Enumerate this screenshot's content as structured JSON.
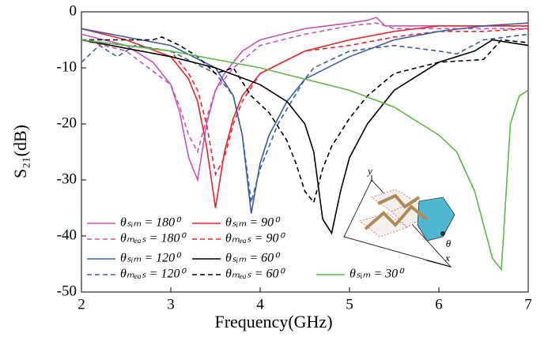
{
  "chart_data": {
    "type": "line",
    "xlabel": "Frequency(GHz)",
    "ylabel": "S₂₁(dB)",
    "xlim": [
      2,
      7
    ],
    "xticks": [
      2,
      3,
      4,
      5,
      6,
      7
    ],
    "ylim": [
      -50,
      0
    ],
    "yticks": [
      0,
      -10,
      -20,
      -30,
      -40,
      -50
    ],
    "grid": false,
    "series": [
      {
        "name": "θₛᵢₘ = 180⁰",
        "color": "#c653b8",
        "dashed": false,
        "x": [
          2,
          2.5,
          2.8,
          3.0,
          3.1,
          3.2,
          3.3,
          3.4,
          3.5,
          3.6,
          3.8,
          4.0,
          4.5,
          5.0,
          5.2,
          5.3,
          5.4,
          5.6,
          6.0,
          7.0
        ],
        "values": [
          -4,
          -6,
          -9,
          -13,
          -18,
          -26,
          -30,
          -20,
          -14,
          -11,
          -7,
          -5,
          -3,
          -2,
          -1.5,
          -1,
          -2.5,
          -2.5,
          -2.5,
          -2.5
        ]
      },
      {
        "name": "θₘₑₐₛ = 180⁰",
        "color": "#c653b8",
        "dashed": true,
        "x": [
          2,
          2.5,
          3.0,
          3.1,
          3.2,
          3.3,
          3.4,
          3.5,
          3.7,
          4.0,
          4.5,
          5.0,
          5.3,
          5.5,
          6.0,
          7.0
        ],
        "values": [
          -5,
          -7,
          -13,
          -17,
          -22,
          -25,
          -19,
          -14,
          -10,
          -6,
          -4,
          -2.5,
          -2,
          -3,
          -3,
          -3
        ]
      },
      {
        "name": "θₛᵢₘ = 90⁰",
        "color": "#e8252a",
        "dashed": false,
        "x": [
          2,
          2.5,
          3.0,
          3.2,
          3.3,
          3.4,
          3.5,
          3.6,
          3.7,
          3.8,
          4.0,
          4.5,
          5.0,
          5.5,
          6.0,
          7.0
        ],
        "values": [
          -3,
          -5,
          -8,
          -12,
          -16,
          -24,
          -35,
          -25,
          -19,
          -15,
          -11,
          -7,
          -5,
          -3.5,
          -2.5,
          -2.5
        ]
      },
      {
        "name": "θₘₑₐₛ = 90⁰",
        "color": "#e8252a",
        "dashed": true,
        "x": [
          2,
          3.0,
          3.2,
          3.3,
          3.4,
          3.5,
          3.6,
          3.7,
          3.8,
          4.0,
          4.5,
          5.0,
          5.5,
          6.0,
          6.5,
          7.0
        ],
        "values": [
          -5,
          -7,
          -11,
          -14,
          -20,
          -29,
          -26,
          -20,
          -16,
          -11,
          -7,
          -6,
          -4.5,
          -3.5,
          -3.5,
          -3
        ]
      },
      {
        "name": "θₛᵢₘ = 120⁰",
        "color": "#3d5aa8",
        "dashed": false,
        "x": [
          2,
          3.0,
          3.5,
          3.7,
          3.8,
          3.9,
          4.0,
          4.1,
          4.3,
          4.5,
          5.0,
          5.5,
          6.0,
          6.5,
          7.0
        ],
        "values": [
          -3,
          -6,
          -10,
          -15,
          -22,
          -36,
          -27,
          -22,
          -16,
          -12,
          -8,
          -5,
          -3.5,
          -2.5,
          -2
        ]
      },
      {
        "name": "θₘₑₐₛ = 120⁰",
        "color": "#3d5aa8",
        "dashed": true,
        "x": [
          2,
          2.2,
          2.4,
          2.6,
          3.0,
          3.5,
          3.7,
          3.8,
          3.9,
          4.0,
          4.2,
          4.5,
          4.6,
          5.0,
          5.5,
          6.0,
          6.2,
          6.5,
          7.0
        ],
        "values": [
          -9,
          -6,
          -8,
          -6,
          -7,
          -11,
          -15,
          -22,
          -34,
          -28,
          -20,
          -12,
          -10,
          -7,
          -6,
          -7,
          -7.5,
          -5,
          -4
        ]
      },
      {
        "name": "θₛᵢₘ = 60⁰",
        "color": "#000000",
        "dashed": false,
        "x": [
          2,
          3.0,
          3.5,
          4.0,
          4.3,
          4.5,
          4.6,
          4.7,
          4.8,
          4.9,
          5.0,
          5.2,
          5.5,
          6.0,
          6.4,
          6.6,
          7.0
        ],
        "values": [
          -5,
          -8,
          -10,
          -13,
          -16,
          -20,
          -25,
          -37,
          -39.5,
          -32,
          -26,
          -20,
          -14,
          -9,
          -7,
          -5,
          -6
        ]
      },
      {
        "name": "θₘₑₐₛ = 60⁰",
        "color": "#000000",
        "dashed": true,
        "x": [
          2,
          2.6,
          2.8,
          2.9,
          3.1,
          3.3,
          3.5,
          3.7,
          3.9,
          4.1,
          4.3,
          4.4,
          4.5,
          4.6,
          4.7,
          4.8,
          5.0,
          5.2,
          5.5,
          6.0,
          6.5,
          6.7,
          7.0
        ],
        "values": [
          -5,
          -5,
          -5,
          -4.5,
          -6,
          -8,
          -11,
          -10,
          -15,
          -18,
          -23,
          -27,
          -32,
          -34,
          -28,
          -24,
          -19,
          -15,
          -11,
          -9,
          -8.5,
          -5,
          -5.5
        ]
      },
      {
        "name": "θₛᵢₘ = 30⁰",
        "color": "#5cb843",
        "dashed": false,
        "x": [
          2,
          3.0,
          4.0,
          5.0,
          5.5,
          6.0,
          6.2,
          6.4,
          6.5,
          6.6,
          6.7,
          6.8,
          6.9,
          7.0
        ],
        "values": [
          -5,
          -7,
          -10,
          -14,
          -17,
          -22,
          -25,
          -32,
          -38,
          -44,
          -46,
          -20,
          -15,
          -14
        ]
      }
    ]
  },
  "inset_labels": [
    "y",
    "x",
    "θ"
  ]
}
